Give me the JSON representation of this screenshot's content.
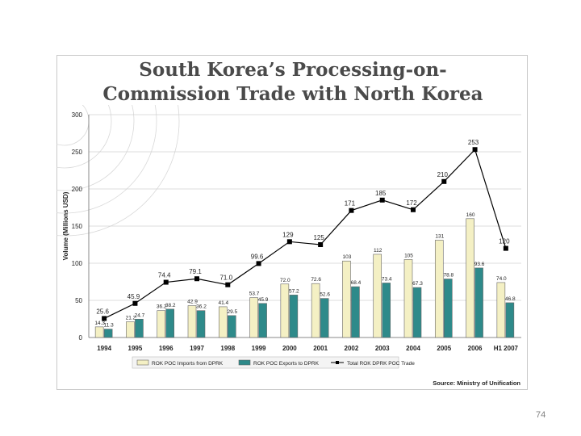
{
  "page_number": "74",
  "chart_data": {
    "type": "bar",
    "title": [
      "South Korea’s Processing-on-",
      "Commission Trade with North Korea"
    ],
    "ylabel": "Volume (Millions USD)",
    "ylim": [
      0,
      300
    ],
    "yticks": [
      0,
      50,
      100,
      150,
      200,
      250,
      300
    ],
    "categories": [
      "1994",
      "1995",
      "1996",
      "1997",
      "1998",
      "1999",
      "2000",
      "2001",
      "2002",
      "2003",
      "2004",
      "2005",
      "2006",
      "H1 2007"
    ],
    "series": [
      {
        "name": "ROK POC Imports from DPRK",
        "kind": "bar",
        "color": "#f4f0c4",
        "values": [
          14.3,
          21.2,
          36.2,
          42.9,
          41.4,
          53.7,
          72.0,
          72.6,
          103,
          112,
          105,
          131,
          160,
          74.0
        ],
        "labels": [
          "14.3",
          "21.2",
          "36.2",
          "42.9",
          "41.4",
          "53.7",
          "72.0",
          "72.6",
          "103",
          "112",
          "105",
          "131",
          "160",
          "74.0"
        ]
      },
      {
        "name": "ROK POC Exports to DPRK",
        "kind": "bar",
        "color": "#2e8a8a",
        "values": [
          11.3,
          24.7,
          38.2,
          36.2,
          29.5,
          45.9,
          57.2,
          52.6,
          68.4,
          73.4,
          67.3,
          78.8,
          93.6,
          46.8
        ],
        "labels": [
          "11.3",
          "24.7",
          "38.2",
          "36.2",
          "29.5",
          "45.9",
          "57.2",
          "52.6",
          "68.4",
          "73.4",
          "67.3",
          "78.8",
          "93.6",
          "46.8"
        ]
      },
      {
        "name": "Total ROK DPRK POC Trade",
        "kind": "line",
        "color": "#000000",
        "values": [
          25.6,
          45.9,
          74.4,
          79.1,
          71.0,
          99.6,
          129,
          125,
          171,
          185,
          172,
          210,
          253,
          120
        ],
        "labels": [
          "25.6",
          "45.9",
          "74.4",
          "79.1",
          "71.0",
          "99.6",
          "129",
          "125",
          "171",
          "185",
          "172",
          "210",
          "253",
          "120"
        ]
      }
    ],
    "legend_position": "bottom",
    "source": "Source: Ministry of Unification"
  }
}
